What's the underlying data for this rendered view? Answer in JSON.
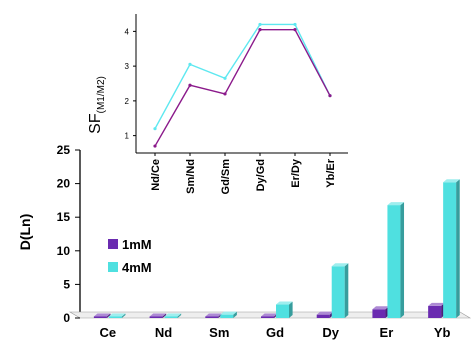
{
  "chart_data": [
    {
      "type": "bar",
      "categories": [
        "Ce",
        "Nd",
        "Sm",
        "Gd",
        "Dy",
        "Er",
        "Yb"
      ],
      "series": [
        {
          "name": "1mM",
          "color": "#6a2bb0",
          "values": [
            0.1,
            0.1,
            0.1,
            0.2,
            0.5,
            1.3,
            1.8
          ]
        },
        {
          "name": "4mM",
          "color": "#4fe0e0",
          "values": [
            0.2,
            0.2,
            0.5,
            2.0,
            7.7,
            16.8,
            20.2
          ]
        }
      ],
      "ylabel": "D(Ln)",
      "xlabel": "",
      "ylim": [
        0,
        25
      ],
      "yticks": [
        0,
        5,
        10,
        15,
        20,
        25
      ],
      "legend_position": "left"
    },
    {
      "type": "line",
      "categories": [
        "Nd/Ce",
        "Sm/Nd",
        "Gd/Sm",
        "Dy/Gd",
        "Er/Dy",
        "Yb/Er"
      ],
      "series": [
        {
          "color": "#5ee8f0",
          "values": [
            1.2,
            3.05,
            2.65,
            4.2,
            4.2,
            2.15
          ]
        },
        {
          "color": "#8b1a8b",
          "values": [
            0.7,
            2.45,
            2.2,
            4.05,
            4.05,
            2.15
          ]
        }
      ],
      "ylabel": "SF",
      "ylabel_subscript": "(M1/M2)",
      "ylim": [
        0.5,
        4.5
      ],
      "yticks": [
        1,
        2,
        3,
        4
      ],
      "position": "inset-top"
    }
  ]
}
